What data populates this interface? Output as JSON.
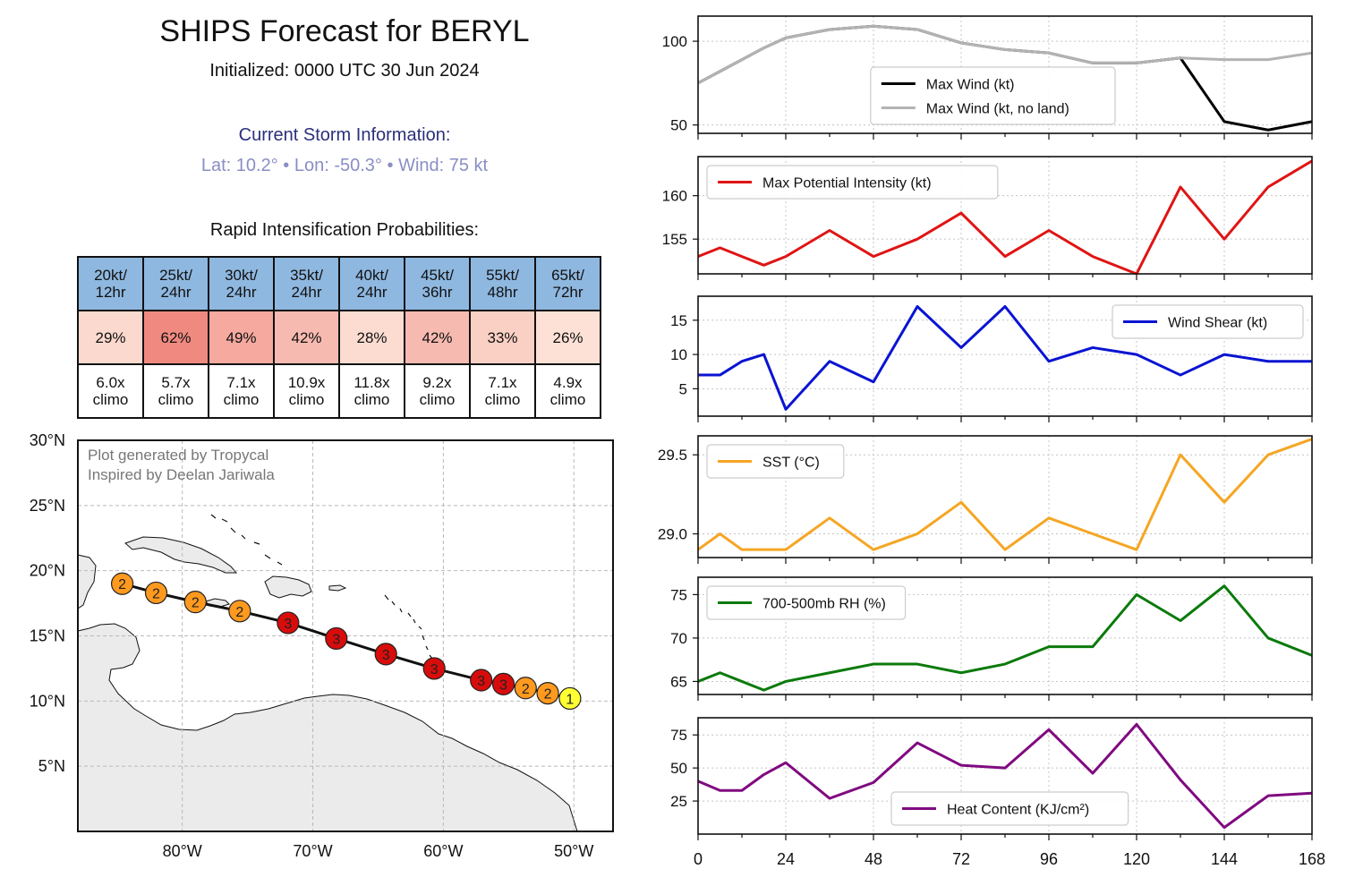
{
  "title": "SHIPS Forecast for BERYL",
  "subtitle": "Initialized: 0000 UTC 30 Jun 2024",
  "storm": {
    "heading": "Current Storm Information:",
    "lat": "Lat: 10.2°",
    "lon": "Lon: -50.3°",
    "wind": "Wind: 75 kt",
    "sep": "•"
  },
  "ri": {
    "heading": "Rapid Intensification Probabilities:",
    "columns": [
      {
        "top": "20kt/",
        "bottom": "12hr",
        "pct": "29%",
        "pct_value": 29,
        "climo_top": "6.0x",
        "climo_bottom": "climo"
      },
      {
        "top": "25kt/",
        "bottom": "24hr",
        "pct": "62%",
        "pct_value": 62,
        "climo_top": "5.7x",
        "climo_bottom": "climo"
      },
      {
        "top": "30kt/",
        "bottom": "24hr",
        "pct": "49%",
        "pct_value": 49,
        "climo_top": "7.1x",
        "climo_bottom": "climo"
      },
      {
        "top": "35kt/",
        "bottom": "24hr",
        "pct": "42%",
        "pct_value": 42,
        "climo_top": "10.9x",
        "climo_bottom": "climo"
      },
      {
        "top": "40kt/",
        "bottom": "24hr",
        "pct": "28%",
        "pct_value": 28,
        "climo_top": "11.8x",
        "climo_bottom": "climo"
      },
      {
        "top": "45kt/",
        "bottom": "36hr",
        "pct": "42%",
        "pct_value": 42,
        "climo_top": "9.2x",
        "climo_bottom": "climo"
      },
      {
        "top": "55kt/",
        "bottom": "48hr",
        "pct": "33%",
        "pct_value": 33,
        "climo_top": "7.1x",
        "climo_bottom": "climo"
      },
      {
        "top": "65kt/",
        "bottom": "72hr",
        "pct": "26%",
        "pct_value": 26,
        "climo_top": "4.9x",
        "climo_bottom": "climo"
      }
    ],
    "colors": {
      "header": "#8fb8e0",
      "pct_low": "#fde3d8",
      "pct_high": "#f08a80"
    }
  },
  "map": {
    "credit1": "Plot generated by Tropycal",
    "credit2": "Inspired by Deelan Jariwala",
    "lon_range": [
      -88,
      -47
    ],
    "lat_range": [
      0,
      30
    ],
    "lon_ticks": [
      {
        "v": -80,
        "l": "80°W"
      },
      {
        "v": -70,
        "l": "70°W"
      },
      {
        "v": -60,
        "l": "60°W"
      },
      {
        "v": -50,
        "l": "50°W"
      }
    ],
    "lat_ticks": [
      {
        "v": 5,
        "l": "5°N"
      },
      {
        "v": 10,
        "l": "10°N"
      },
      {
        "v": 15,
        "l": "15°N"
      },
      {
        "v": 20,
        "l": "20°N"
      },
      {
        "v": 25,
        "l": "25°N"
      },
      {
        "v": 30,
        "l": "30°N"
      }
    ],
    "cat_colors": {
      "1": "#ffff33",
      "2": "#ff9a1f",
      "3": "#d90c0c"
    },
    "track": [
      {
        "lon": -50.3,
        "lat": 10.2,
        "cat": "1"
      },
      {
        "lon": -52.0,
        "lat": 10.6,
        "cat": "2"
      },
      {
        "lon": -53.7,
        "lat": 11.0,
        "cat": "2"
      },
      {
        "lon": -55.4,
        "lat": 11.3,
        "cat": "3"
      },
      {
        "lon": -57.1,
        "lat": 11.6,
        "cat": "3"
      },
      {
        "lon": -60.7,
        "lat": 12.5,
        "cat": "3"
      },
      {
        "lon": -64.4,
        "lat": 13.6,
        "cat": "3"
      },
      {
        "lon": -68.2,
        "lat": 14.8,
        "cat": "3"
      },
      {
        "lon": -71.9,
        "lat": 16.0,
        "cat": "3"
      },
      {
        "lon": -75.6,
        "lat": 16.9,
        "cat": "2"
      },
      {
        "lon": -79.0,
        "lat": 17.6,
        "cat": "2"
      },
      {
        "lon": -82.0,
        "lat": 18.3,
        "cat": "2"
      },
      {
        "lon": -84.6,
        "lat": 19.0,
        "cat": "2"
      }
    ]
  },
  "chart_data": [
    {
      "type": "line",
      "x": [
        0,
        6,
        12,
        18,
        24,
        36,
        48,
        60,
        72,
        84,
        96,
        108,
        120,
        132,
        144,
        156,
        168
      ],
      "ylim": [
        45,
        115
      ],
      "yticks": [
        50,
        100
      ],
      "series": [
        {
          "name": "Max Wind (kt)",
          "color": "#000000",
          "values": [
            75,
            82,
            89,
            96,
            102,
            107,
            109,
            107,
            99,
            95,
            93,
            87,
            87,
            90,
            52,
            47,
            52
          ]
        },
        {
          "name": "Max Wind (kt, no land)",
          "color": "#b3b3b3",
          "values": [
            75,
            82,
            89,
            96,
            102,
            107,
            109,
            107,
            99,
            95,
            93,
            87,
            87,
            90,
            89,
            89,
            93
          ]
        }
      ],
      "legend": "bottom-right"
    },
    {
      "type": "line",
      "x": [
        0,
        6,
        12,
        18,
        24,
        36,
        48,
        60,
        72,
        84,
        96,
        108,
        120,
        132,
        144,
        156,
        168
      ],
      "ylim": [
        151,
        164.5
      ],
      "yticks": [
        155,
        160
      ],
      "series": [
        {
          "name": "Max Potential Intensity (kt)",
          "color": "#e01414",
          "values": [
            153,
            154,
            153,
            152,
            153,
            156,
            153,
            155,
            158,
            153,
            156,
            153,
            151,
            161,
            155,
            161,
            164
          ]
        }
      ],
      "legend": "top-left"
    },
    {
      "type": "line",
      "x": [
        0,
        6,
        12,
        18,
        24,
        36,
        48,
        60,
        72,
        84,
        96,
        108,
        120,
        132,
        144,
        156,
        168
      ],
      "ylim": [
        1,
        18.5
      ],
      "yticks": [
        5,
        10,
        15
      ],
      "series": [
        {
          "name": "Wind Shear (kt)",
          "color": "#0a14d2",
          "values": [
            7,
            7,
            9,
            10,
            2,
            9,
            6,
            17,
            11,
            17,
            9,
            11,
            10,
            7,
            10,
            9,
            9
          ]
        }
      ],
      "legend": "top-right"
    },
    {
      "type": "line",
      "x": [
        0,
        6,
        12,
        18,
        24,
        36,
        48,
        60,
        72,
        84,
        96,
        108,
        120,
        132,
        144,
        156,
        168
      ],
      "ylim": [
        28.85,
        29.62
      ],
      "yticks": [
        29.0,
        29.5
      ],
      "series": [
        {
          "name": "SST (°C)",
          "color": "#f5a623",
          "values": [
            28.9,
            29.0,
            28.9,
            28.9,
            28.9,
            29.1,
            28.9,
            29.0,
            29.2,
            28.9,
            29.1,
            29.0,
            28.9,
            29.5,
            29.2,
            29.5,
            29.6
          ]
        }
      ],
      "legend": "top-left"
    },
    {
      "type": "line",
      "x": [
        0,
        6,
        12,
        18,
        24,
        36,
        48,
        60,
        72,
        84,
        96,
        108,
        120,
        132,
        144,
        156,
        168
      ],
      "ylim": [
        63.5,
        77
      ],
      "yticks": [
        65,
        70,
        75
      ],
      "series": [
        {
          "name": "700-500mb RH (%)",
          "color": "#0b7a0b",
          "values": [
            65,
            66,
            65,
            64,
            65,
            66,
            67,
            67,
            66,
            67,
            69,
            69,
            75,
            72,
            76,
            70,
            68
          ]
        }
      ],
      "legend": "top-left"
    },
    {
      "type": "line",
      "x": [
        0,
        6,
        12,
        18,
        24,
        36,
        48,
        60,
        72,
        84,
        96,
        108,
        120,
        132,
        144,
        156,
        168
      ],
      "ylim": [
        0,
        88
      ],
      "yticks": [
        25,
        50,
        75
      ],
      "series": [
        {
          "name": "Heat Content (KJ/cm²)",
          "color": "#800a80",
          "values": [
            40,
            33,
            33,
            45,
            54,
            27,
            39,
            69,
            52,
            50,
            79,
            46,
            83,
            41,
            5,
            29,
            31
          ]
        }
      ],
      "legend": "bottom-center"
    }
  ],
  "xaxis": {
    "ticks": [
      0,
      24,
      48,
      72,
      96,
      120,
      144,
      168
    ],
    "range": [
      0,
      168
    ]
  }
}
